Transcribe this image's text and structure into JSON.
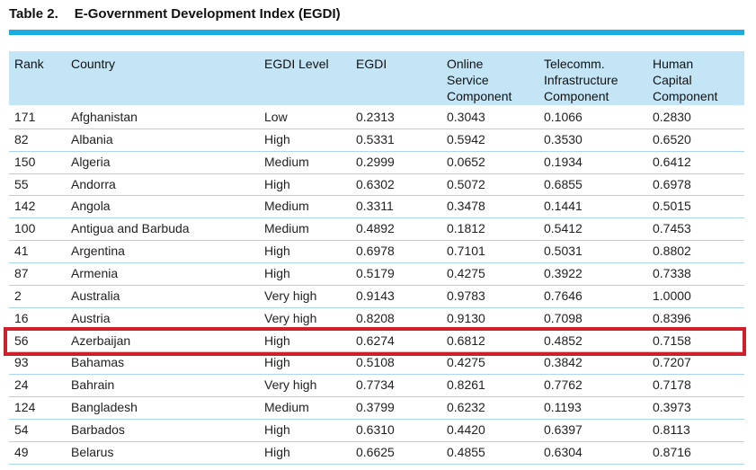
{
  "header": {
    "number": "Table 2.",
    "title": "E-Government Development Index (EGDI)"
  },
  "table": {
    "columns": [
      [
        "Rank"
      ],
      [
        "Country"
      ],
      [
        "EGDI Level"
      ],
      [
        "EGDI"
      ],
      [
        "Online",
        "Service",
        "Component"
      ],
      [
        "Telecomm.",
        "Infrastructure",
        "Component"
      ],
      [
        "Human",
        "Capital",
        "Component"
      ]
    ],
    "rows": [
      [
        "171",
        "Afghanistan",
        "Low",
        "0.2313",
        "0.3043",
        "0.1066",
        "0.2830"
      ],
      [
        "82",
        "Albania",
        "High",
        "0.5331",
        "0.5942",
        "0.3530",
        "0.6520"
      ],
      [
        "150",
        "Algeria",
        "Medium",
        "0.2999",
        "0.0652",
        "0.1934",
        "0.6412"
      ],
      [
        "55",
        "Andorra",
        "High",
        "0.6302",
        "0.5072",
        "0.6855",
        "0.6978"
      ],
      [
        "142",
        "Angola",
        "Medium",
        "0.3311",
        "0.3478",
        "0.1441",
        "0.5015"
      ],
      [
        "100",
        "Antigua and Barbuda",
        "Medium",
        "0.4892",
        "0.1812",
        "0.5412",
        "0.7453"
      ],
      [
        "41",
        "Argentina",
        "High",
        "0.6978",
        "0.7101",
        "0.5031",
        "0.8802"
      ],
      [
        "87",
        "Armenia",
        "High",
        "0.5179",
        "0.4275",
        "0.3922",
        "0.7338"
      ],
      [
        "2",
        "Australia",
        "Very high",
        "0.9143",
        "0.9783",
        "0.7646",
        "1.0000"
      ],
      [
        "16",
        "Austria",
        "Very high",
        "0.8208",
        "0.9130",
        "0.7098",
        "0.8396"
      ],
      [
        "56",
        "Azerbaijan",
        "High",
        "0.6274",
        "0.6812",
        "0.4852",
        "0.7158"
      ],
      [
        "93",
        "Bahamas",
        "High",
        "0.5108",
        "0.4275",
        "0.3842",
        "0.7207"
      ],
      [
        "24",
        "Bahrain",
        "Very high",
        "0.7734",
        "0.8261",
        "0.7762",
        "0.7178"
      ],
      [
        "124",
        "Bangladesh",
        "Medium",
        "0.3799",
        "0.6232",
        "0.1193",
        "0.3973"
      ],
      [
        "54",
        "Barbados",
        "High",
        "0.6310",
        "0.4420",
        "0.6397",
        "0.8113"
      ],
      [
        "49",
        "Belarus",
        "High",
        "0.6625",
        "0.4855",
        "0.6304",
        "0.8716"
      ]
    ],
    "highlighted_row": 10
  }
}
